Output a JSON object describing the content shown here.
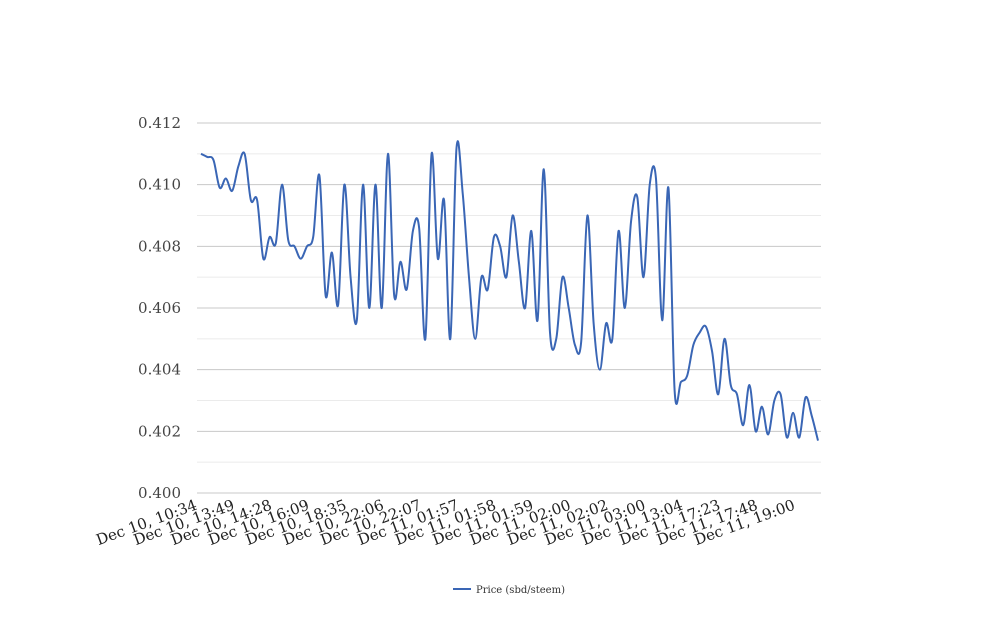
{
  "chart_data": {
    "type": "line",
    "title": "",
    "xlabel": "",
    "ylabel": "",
    "ylim": [
      0.4,
      0.412
    ],
    "y_ticks": [
      "0.400",
      "0.402",
      "0.404",
      "0.406",
      "0.408",
      "0.410",
      "0.412"
    ],
    "y_tick_values": [
      0.4,
      0.402,
      0.404,
      0.406,
      0.408,
      0.41,
      0.412
    ],
    "y_minor_gridlines": [
      0.401,
      0.403,
      0.405,
      0.407,
      0.409,
      0.411
    ],
    "x_tick_labels": [
      "Dec 10, 10:34",
      "Dec 10, 13:49",
      "Dec 10, 14:28",
      "Dec 10, 16:09",
      "Dec 10, 18:35",
      "Dec 10, 22:06",
      "Dec 10, 22:07",
      "Dec 11, 01:57",
      "Dec 11, 01:58",
      "Dec 11, 01:59",
      "Dec 11, 02:00",
      "Dec 11, 02:02",
      "Dec 11, 03:00",
      "Dec 11, 13:04",
      "Dec 11, 17:23",
      "Dec 11, 17:48",
      "Dec 11, 19:00"
    ],
    "grid": true,
    "legend_position": "bottom",
    "series": [
      {
        "name": "Price (sbd/steem)",
        "color": "#3a66b5",
        "values": [
          0.411,
          0.4109,
          0.4108,
          0.4099,
          0.4102,
          0.4098,
          0.4106,
          0.411,
          0.4095,
          0.4095,
          0.4076,
          0.4083,
          0.4081,
          0.41,
          0.4082,
          0.408,
          0.4076,
          0.408,
          0.4083,
          0.4103,
          0.4064,
          0.4078,
          0.4061,
          0.41,
          0.407,
          0.4056,
          0.41,
          0.406,
          0.41,
          0.406,
          0.411,
          0.4064,
          0.4075,
          0.4066,
          0.4085,
          0.4086,
          0.405,
          0.411,
          0.4076,
          0.4095,
          0.405,
          0.4112,
          0.4097,
          0.407,
          0.405,
          0.407,
          0.4066,
          0.4083,
          0.408,
          0.407,
          0.409,
          0.4075,
          0.406,
          0.4085,
          0.4056,
          0.4105,
          0.4052,
          0.405,
          0.407,
          0.406,
          0.4048,
          0.4049,
          0.409,
          0.4055,
          0.404,
          0.4055,
          0.405,
          0.4085,
          0.406,
          0.4088,
          0.4096,
          0.407,
          0.41,
          0.4102,
          0.4056,
          0.4099,
          0.4033,
          0.4036,
          0.4038,
          0.4048,
          0.4052,
          0.4054,
          0.4046,
          0.4032,
          0.405,
          0.4035,
          0.4032,
          0.4022,
          0.4035,
          0.402,
          0.4028,
          0.4019,
          0.403,
          0.4032,
          0.4018,
          0.4026,
          0.4018,
          0.4031,
          0.4025,
          0.4017
        ]
      }
    ]
  }
}
